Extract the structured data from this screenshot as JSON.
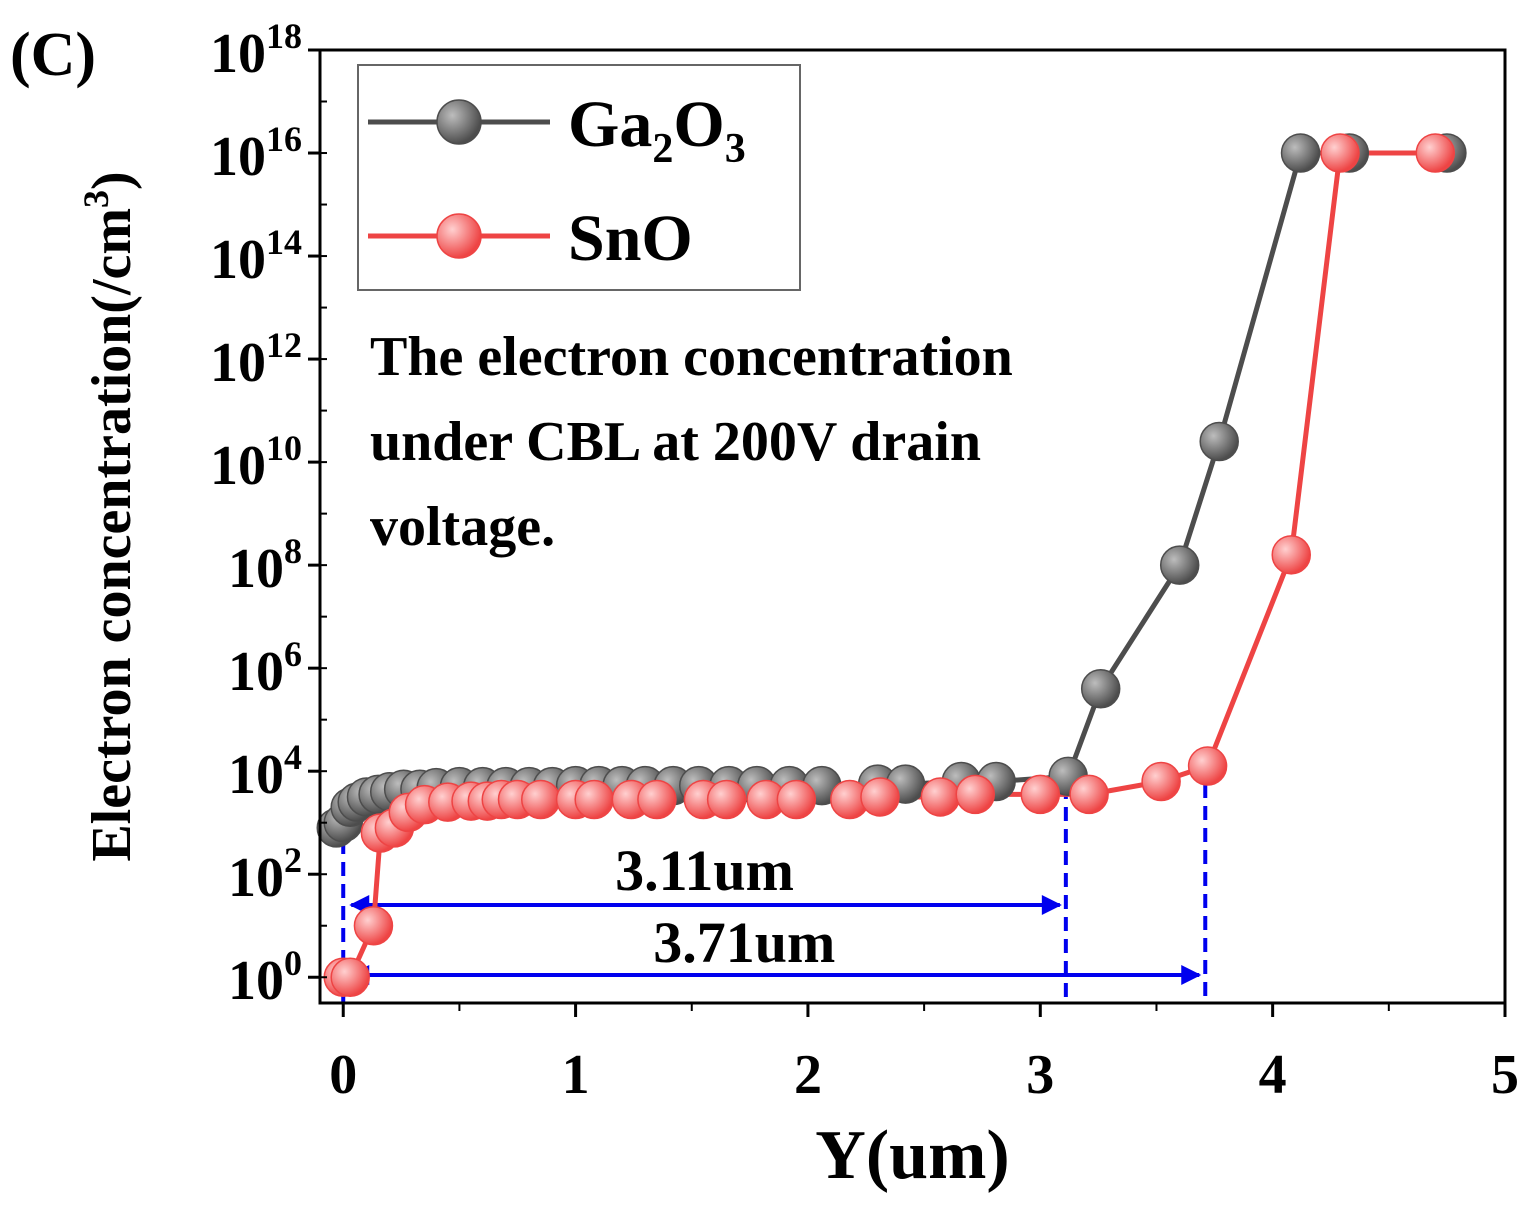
{
  "chart_data": {
    "panel_label": "(C)",
    "type": "line",
    "xlabel": "Y(um)",
    "ylabel": "Electron concentration(/cm",
    "ylabel_sup": "3",
    "ylabel_end": ")",
    "xlim": [
      -0.1,
      5
    ],
    "ylim_log10": [
      -0.5,
      18
    ],
    "y_scale": "log",
    "x_ticks": [
      {
        "value": 0,
        "label": "0"
      },
      {
        "value": 1,
        "label": "1"
      },
      {
        "value": 2,
        "label": "2"
      },
      {
        "value": 3,
        "label": "3"
      },
      {
        "value": 4,
        "label": "4"
      },
      {
        "value": 5,
        "label": "5"
      }
    ],
    "y_ticks": [
      {
        "exp": 0,
        "base": "10",
        "sup": "0"
      },
      {
        "exp": 2,
        "base": "10",
        "sup": "2"
      },
      {
        "exp": 4,
        "base": "10",
        "sup": "4"
      },
      {
        "exp": 6,
        "base": "10",
        "sup": "6"
      },
      {
        "exp": 8,
        "base": "10",
        "sup": "8"
      },
      {
        "exp": 10,
        "base": "10",
        "sup": "10"
      },
      {
        "exp": 12,
        "base": "10",
        "sup": "12"
      },
      {
        "exp": 14,
        "base": "10",
        "sup": "14"
      },
      {
        "exp": 16,
        "base": "10",
        "sup": "16"
      },
      {
        "exp": 18,
        "base": "10",
        "sup": "18"
      }
    ],
    "legend": {
      "placement": "top-left",
      "entries": [
        {
          "series": 0,
          "base": "Ga",
          "sub1": "2",
          "mid": "O",
          "sub2": "3"
        },
        {
          "series": 1,
          "base": "SnO",
          "sub1": "",
          "mid": "",
          "sub2": ""
        }
      ]
    },
    "annotation": {
      "lines": [
        "The electron concentration",
        "under CBL at 200V drain",
        "voltage."
      ]
    },
    "dimensions": [
      {
        "label": "3.11um",
        "x_start": 0,
        "x_end": 3.11
      },
      {
        "label": "3.71um",
        "x_start": 0,
        "x_end": 3.71
      }
    ],
    "series": [
      {
        "name": "Ga2O3",
        "color": "#4d4d4d",
        "highlight": "#bdbdbd",
        "x": [
          -0.03,
          0.0,
          0.03,
          0.06,
          0.1,
          0.15,
          0.2,
          0.26,
          0.33,
          0.4,
          0.5,
          0.6,
          0.7,
          0.8,
          0.9,
          1.0,
          1.1,
          1.2,
          1.3,
          1.42,
          1.53,
          1.66,
          1.78,
          1.92,
          2.06,
          2.3,
          2.42,
          2.66,
          2.81,
          3.12,
          3.26,
          3.6,
          3.77,
          4.12,
          4.33,
          4.75
        ],
        "log10_y": [
          2.9,
          3.0,
          3.3,
          3.4,
          3.5,
          3.55,
          3.6,
          3.65,
          3.65,
          3.68,
          3.7,
          3.7,
          3.7,
          3.7,
          3.7,
          3.72,
          3.72,
          3.72,
          3.72,
          3.72,
          3.72,
          3.72,
          3.72,
          3.72,
          3.72,
          3.75,
          3.75,
          3.8,
          3.8,
          3.9,
          5.6,
          8.0,
          10.4,
          16.0,
          16.0,
          16.0
        ]
      },
      {
        "name": "SnO",
        "color": "#ee4444",
        "highlight": "#ffd0d0",
        "x": [
          0.0,
          0.03,
          0.13,
          0.16,
          0.22,
          0.28,
          0.35,
          0.45,
          0.55,
          0.62,
          0.68,
          0.75,
          0.85,
          1.0,
          1.08,
          1.24,
          1.35,
          1.55,
          1.65,
          1.82,
          1.95,
          2.18,
          2.31,
          2.57,
          2.72,
          3.0,
          3.21,
          3.52,
          3.72,
          4.08,
          4.29,
          4.7
        ],
        "log10_y": [
          0.0,
          0.0,
          1.0,
          2.8,
          2.9,
          3.2,
          3.35,
          3.4,
          3.42,
          3.42,
          3.45,
          3.45,
          3.45,
          3.45,
          3.45,
          3.45,
          3.45,
          3.45,
          3.45,
          3.45,
          3.45,
          3.45,
          3.5,
          3.5,
          3.55,
          3.55,
          3.55,
          3.8,
          4.1,
          8.2,
          16.0,
          16.0
        ]
      }
    ]
  }
}
